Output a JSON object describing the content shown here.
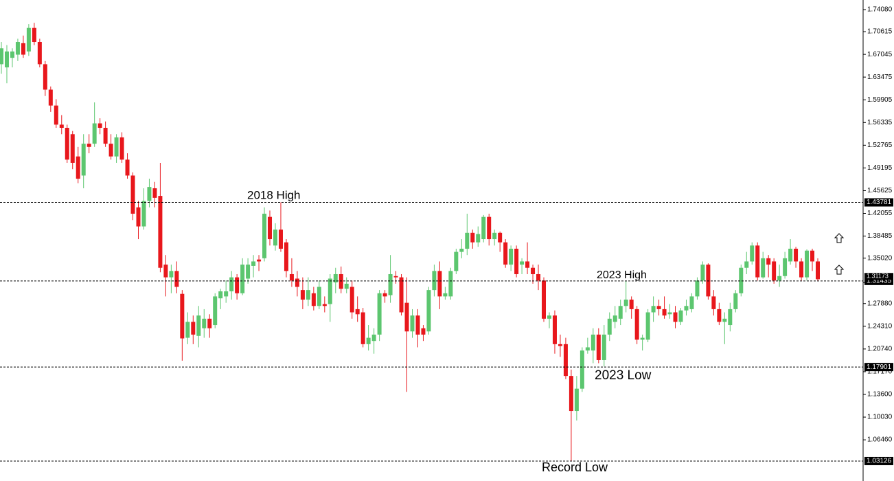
{
  "chart_data": {
    "type": "candlestick",
    "ylim": [
      1.0107,
      1.7559
    ],
    "yticks": [
      {
        "value": 1.7408,
        "label": "1.74080"
      },
      1.70615,
      1.67045,
      1.63475,
      1.59905,
      1.56335,
      1.52765,
      1.49195,
      1.45625,
      1.42055,
      1.38485,
      {
        "value": 1.3502,
        "label": "1.35020"
      },
      {
        "value": 1.2788,
        "label": "1.27880"
      },
      {
        "value": 1.2431,
        "label": "1.24310"
      },
      {
        "value": 1.2074,
        "label": "1.20740"
      },
      {
        "value": 1.1717,
        "label": "1.17170"
      },
      {
        "value": 1.136,
        "label": "1.13600"
      },
      {
        "value": 1.1003,
        "label": "1.10030"
      },
      {
        "value": 1.0646,
        "label": "1.06460"
      }
    ],
    "levels": [
      1.43781,
      1.31435,
      1.17901,
      1.03126
    ],
    "last_price": 1.31173,
    "annotations": [
      "2018 High",
      "2023 High",
      "2023 Low",
      "Record Low"
    ],
    "up_color": "#5cc66f",
    "down_color": "#e8171c",
    "candles": [
      [
        1.655,
        1.69,
        1.64,
        1.68
      ],
      [
        1.65,
        1.685,
        1.625,
        1.675
      ],
      [
        1.665,
        1.68,
        1.65,
        1.675
      ],
      [
        1.67,
        1.695,
        1.66,
        1.69
      ],
      [
        1.688,
        1.7,
        1.665,
        1.67
      ],
      [
        1.675,
        1.718,
        1.668,
        1.712
      ],
      [
        1.712,
        1.72,
        1.685,
        1.69
      ],
      [
        1.69,
        1.695,
        1.65,
        1.655
      ],
      [
        1.655,
        1.66,
        1.605,
        1.615
      ],
      [
        1.615,
        1.62,
        1.58,
        1.59
      ],
      [
        1.59,
        1.6,
        1.555,
        1.56
      ],
      [
        1.56,
        1.575,
        1.545,
        1.555
      ],
      [
        1.555,
        1.56,
        1.5,
        1.505
      ],
      [
        1.545,
        1.55,
        1.49,
        1.5
      ],
      [
        1.51,
        1.525,
        1.468,
        1.475
      ],
      [
        1.48,
        1.545,
        1.46,
        1.53
      ],
      [
        1.53,
        1.545,
        1.515,
        1.525
      ],
      [
        1.53,
        1.595,
        1.525,
        1.562
      ],
      [
        1.562,
        1.57,
        1.545,
        1.555
      ],
      [
        1.555,
        1.565,
        1.525,
        1.53
      ],
      [
        1.53,
        1.545,
        1.505,
        1.51
      ],
      [
        1.51,
        1.545,
        1.5,
        1.54
      ],
      [
        1.54,
        1.548,
        1.5,
        1.505
      ],
      [
        1.505,
        1.515,
        1.475,
        1.48
      ],
      [
        1.48,
        1.485,
        1.41,
        1.42
      ],
      [
        1.43,
        1.44,
        1.38,
        1.4
      ],
      [
        1.4,
        1.46,
        1.395,
        1.44
      ],
      [
        1.44,
        1.475,
        1.43,
        1.462
      ],
      [
        1.46,
        1.47,
        1.43,
        1.445
      ],
      [
        1.448,
        1.5,
        1.328,
        1.335
      ],
      [
        1.34,
        1.355,
        1.29,
        1.32
      ],
      [
        1.32,
        1.34,
        1.295,
        1.33
      ],
      [
        1.33,
        1.345,
        1.295,
        1.305
      ],
      [
        1.294,
        1.3,
        1.189,
        1.224
      ],
      [
        1.225,
        1.265,
        1.215,
        1.25
      ],
      [
        1.25,
        1.26,
        1.215,
        1.23
      ],
      [
        1.228,
        1.275,
        1.21,
        1.26
      ],
      [
        1.24,
        1.27,
        1.225,
        1.255
      ],
      [
        1.255,
        1.262,
        1.225,
        1.24
      ],
      [
        1.245,
        1.295,
        1.24,
        1.29
      ],
      [
        1.287,
        1.302,
        1.27,
        1.298
      ],
      [
        1.29,
        1.315,
        1.28,
        1.298
      ],
      [
        1.298,
        1.33,
        1.285,
        1.32
      ],
      [
        1.32,
        1.325,
        1.285,
        1.295
      ],
      [
        1.295,
        1.35,
        1.292,
        1.34
      ],
      [
        1.318,
        1.35,
        1.31,
        1.34
      ],
      [
        1.338,
        1.355,
        1.32,
        1.345
      ],
      [
        1.348,
        1.355,
        1.33,
        1.345
      ],
      [
        1.35,
        1.43,
        1.345,
        1.42
      ],
      [
        1.415,
        1.425,
        1.37,
        1.38
      ],
      [
        1.37,
        1.405,
        1.362,
        1.395
      ],
      [
        1.395,
        1.4378,
        1.36,
        1.365
      ],
      [
        1.375,
        1.38,
        1.32,
        1.33
      ],
      [
        1.325,
        1.35,
        1.305,
        1.315
      ],
      [
        1.318,
        1.33,
        1.29,
        1.305
      ],
      [
        1.3,
        1.32,
        1.27,
        1.285
      ],
      [
        1.285,
        1.32,
        1.275,
        1.3
      ],
      [
        1.295,
        1.305,
        1.268,
        1.275
      ],
      [
        1.275,
        1.315,
        1.27,
        1.305
      ],
      [
        1.278,
        1.29,
        1.265,
        1.275
      ],
      [
        1.278,
        1.325,
        1.25,
        1.318
      ],
      [
        1.312,
        1.335,
        1.295,
        1.325
      ],
      [
        1.325,
        1.337,
        1.295,
        1.302
      ],
      [
        1.302,
        1.32,
        1.295,
        1.31
      ],
      [
        1.305,
        1.315,
        1.255,
        1.265
      ],
      [
        1.27,
        1.29,
        1.25,
        1.262
      ],
      [
        1.265,
        1.272,
        1.21,
        1.215
      ],
      [
        1.215,
        1.245,
        1.205,
        1.225
      ],
      [
        1.22,
        1.24,
        1.2,
        1.23
      ],
      [
        1.23,
        1.3,
        1.22,
        1.295
      ],
      [
        1.295,
        1.3,
        1.28,
        1.29
      ],
      [
        1.292,
        1.355,
        1.28,
        1.325
      ],
      [
        1.322,
        1.33,
        1.31,
        1.32
      ],
      [
        1.32,
        1.325,
        1.26,
        1.265
      ],
      [
        1.28,
        1.32,
        1.14,
        1.235
      ],
      [
        1.235,
        1.27,
        1.225,
        1.26
      ],
      [
        1.26,
        1.27,
        1.21,
        1.23
      ],
      [
        1.24,
        1.245,
        1.22,
        1.23
      ],
      [
        1.235,
        1.305,
        1.23,
        1.3
      ],
      [
        1.3,
        1.34,
        1.29,
        1.33
      ],
      [
        1.33,
        1.345,
        1.27,
        1.29
      ],
      [
        1.29,
        1.305,
        1.285,
        1.295
      ],
      [
        1.29,
        1.335,
        1.285,
        1.33
      ],
      [
        1.33,
        1.365,
        1.325,
        1.36
      ],
      [
        1.36,
        1.38,
        1.35,
        1.365
      ],
      [
        1.365,
        1.42,
        1.355,
        1.39
      ],
      [
        1.39,
        1.395,
        1.365,
        1.375
      ],
      [
        1.375,
        1.4,
        1.368,
        1.388
      ],
      [
        1.38,
        1.418,
        1.375,
        1.415
      ],
      [
        1.415,
        1.42,
        1.37,
        1.38
      ],
      [
        1.38,
        1.395,
        1.37,
        1.39
      ],
      [
        1.39,
        1.392,
        1.36,
        1.375
      ],
      [
        1.375,
        1.38,
        1.335,
        1.34
      ],
      [
        1.34,
        1.37,
        1.33,
        1.365
      ],
      [
        1.365,
        1.37,
        1.32,
        1.325
      ],
      [
        1.34,
        1.35,
        1.325,
        1.345
      ],
      [
        1.345,
        1.375,
        1.325,
        1.335
      ],
      [
        1.335,
        1.34,
        1.31,
        1.325
      ],
      [
        1.325,
        1.34,
        1.3,
        1.315
      ],
      [
        1.315,
        1.32,
        1.25,
        1.255
      ],
      [
        1.255,
        1.265,
        1.24,
        1.26
      ],
      [
        1.26,
        1.268,
        1.2,
        1.215
      ],
      [
        1.215,
        1.23,
        1.195,
        1.212
      ],
      [
        1.215,
        1.225,
        1.16,
        1.165
      ],
      [
        1.165,
        1.175,
        1.03126,
        1.11
      ],
      [
        1.11,
        1.165,
        1.095,
        1.145
      ],
      [
        1.145,
        1.21,
        1.14,
        1.205
      ],
      [
        1.205,
        1.225,
        1.2,
        1.21
      ],
      [
        1.205,
        1.24,
        1.185,
        1.23
      ],
      [
        1.23,
        1.24,
        1.185,
        1.19
      ],
      [
        1.19,
        1.245,
        1.18,
        1.23
      ],
      [
        1.23,
        1.265,
        1.22,
        1.255
      ],
      [
        1.25,
        1.275,
        1.24,
        1.26
      ],
      [
        1.255,
        1.285,
        1.245,
        1.275
      ],
      [
        1.275,
        1.3143,
        1.265,
        1.285
      ],
      [
        1.285,
        1.29,
        1.255,
        1.27
      ],
      [
        1.27,
        1.275,
        1.215,
        1.222
      ],
      [
        1.222,
        1.23,
        1.205,
        1.225
      ],
      [
        1.222,
        1.27,
        1.218,
        1.265
      ],
      [
        1.265,
        1.29,
        1.25,
        1.275
      ],
      [
        1.275,
        1.285,
        1.26,
        1.27
      ],
      [
        1.27,
        1.29,
        1.255,
        1.26
      ],
      [
        1.262,
        1.278,
        1.255,
        1.265
      ],
      [
        1.265,
        1.275,
        1.24,
        1.25
      ],
      [
        1.25,
        1.272,
        1.245,
        1.268
      ],
      [
        1.268,
        1.285,
        1.26,
        1.275
      ],
      [
        1.27,
        1.295,
        1.265,
        1.29
      ],
      [
        1.29,
        1.32,
        1.285,
        1.315
      ],
      [
        1.315,
        1.345,
        1.31,
        1.34
      ],
      [
        1.34,
        1.342,
        1.285,
        1.29
      ],
      [
        1.29,
        1.3,
        1.26,
        1.27
      ],
      [
        1.27,
        1.28,
        1.245,
        1.25
      ],
      [
        1.25,
        1.265,
        1.215,
        1.255
      ],
      [
        1.245,
        1.28,
        1.235,
        1.27
      ],
      [
        1.27,
        1.3,
        1.265,
        1.295
      ],
      [
        1.295,
        1.34,
        1.29,
        1.335
      ],
      [
        1.335,
        1.36,
        1.325,
        1.345
      ],
      [
        1.345,
        1.375,
        1.34,
        1.37
      ],
      [
        1.37,
        1.375,
        1.315,
        1.32
      ],
      [
        1.32,
        1.36,
        1.318,
        1.35
      ],
      [
        1.35,
        1.355,
        1.32,
        1.34
      ],
      [
        1.345,
        1.35,
        1.31,
        1.315
      ],
      [
        1.315,
        1.34,
        1.305,
        1.322
      ],
      [
        1.322,
        1.36,
        1.318,
        1.35
      ],
      [
        1.345,
        1.38,
        1.34,
        1.365
      ],
      [
        1.365,
        1.368,
        1.335,
        1.345
      ],
      [
        1.345,
        1.35,
        1.315,
        1.32
      ],
      [
        1.32,
        1.364,
        1.315,
        1.362
      ],
      [
        1.362,
        1.365,
        1.33,
        1.345
      ],
      [
        1.345,
        1.35,
        1.315,
        1.317
      ]
    ]
  }
}
